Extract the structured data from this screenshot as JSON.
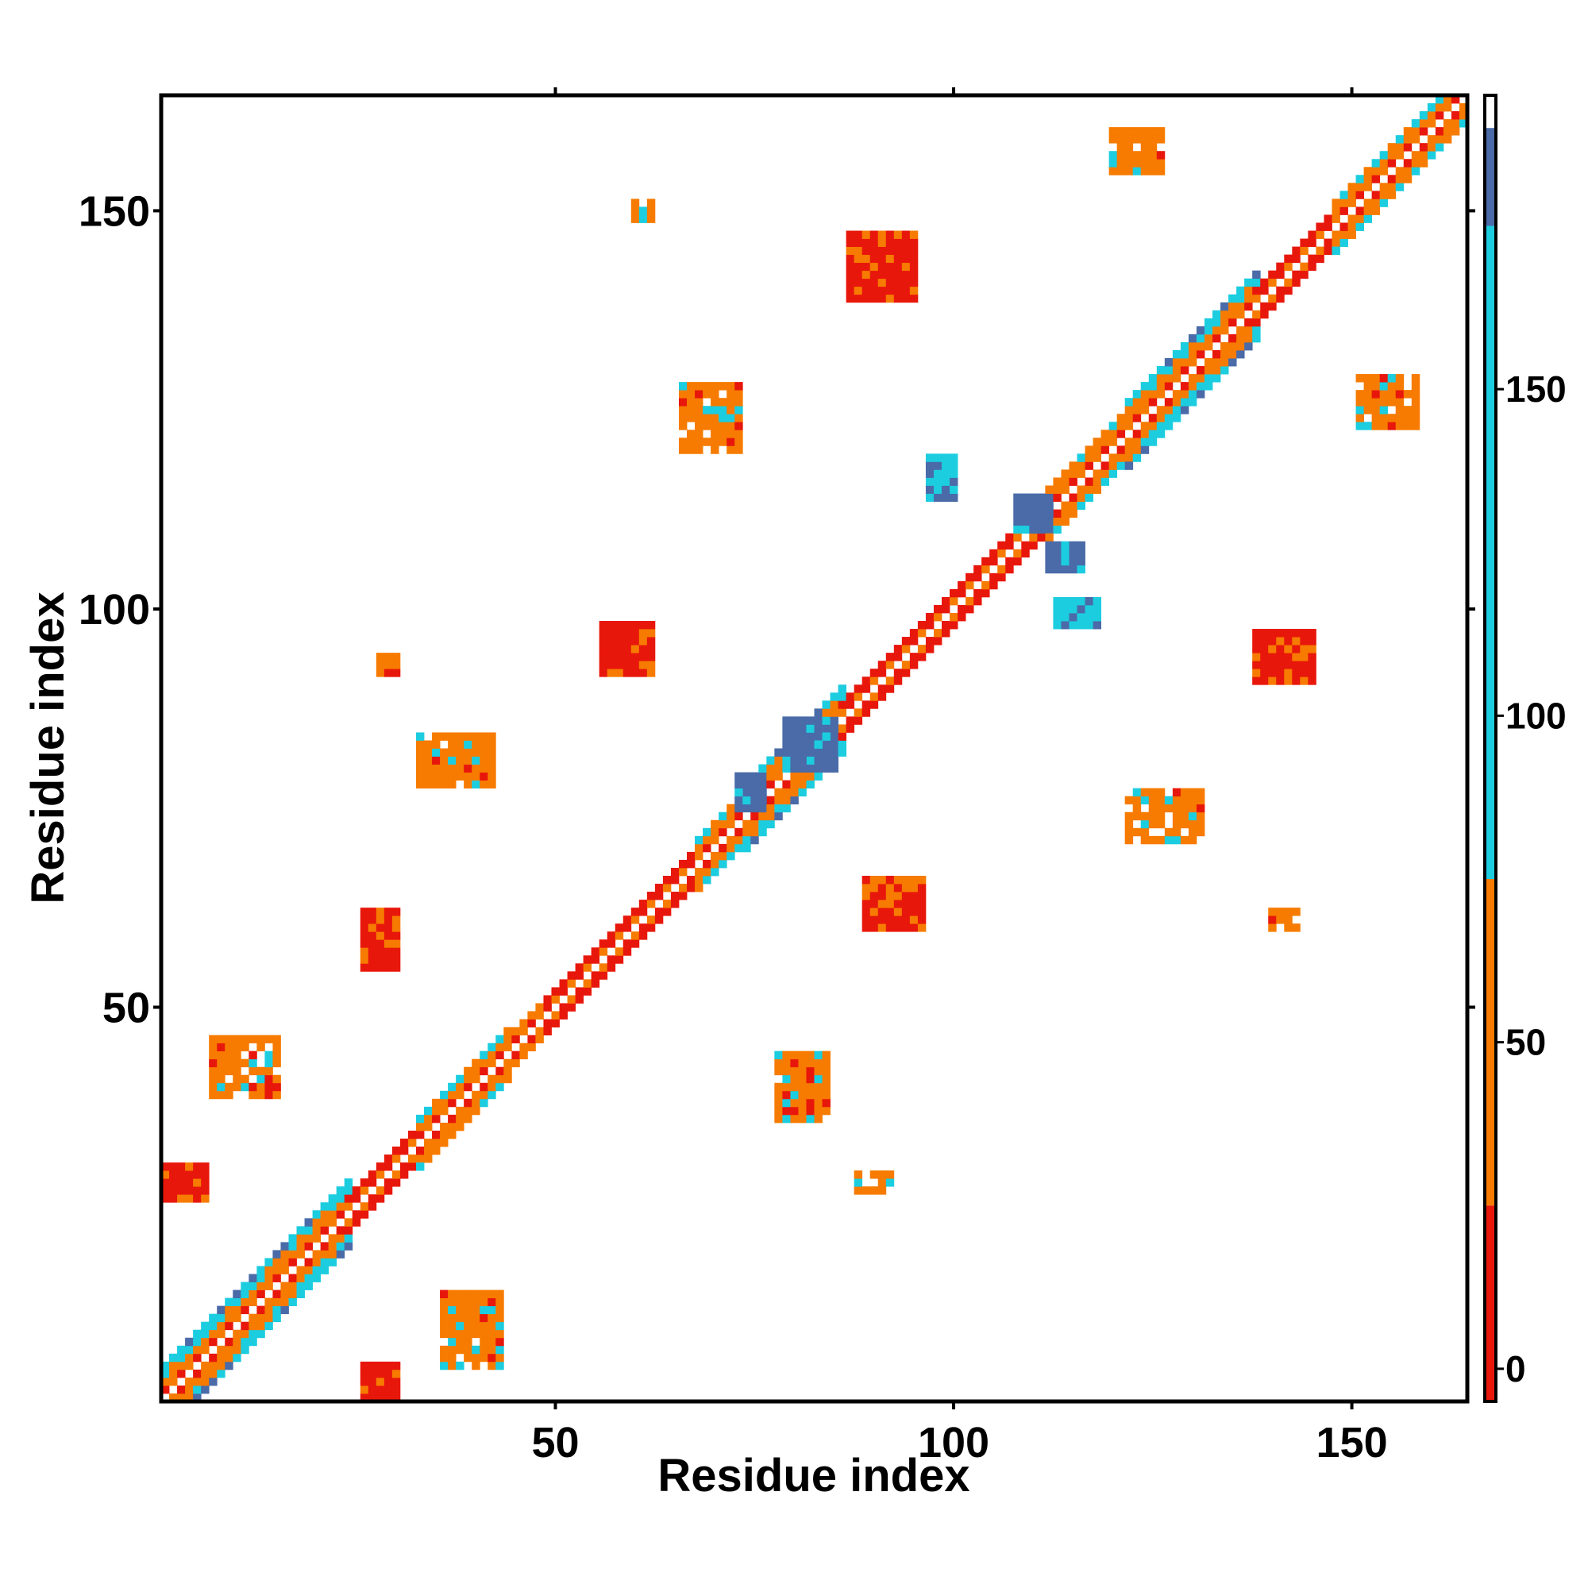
{
  "chart_data": {
    "type": "heatmap",
    "title": "",
    "xlabel": "Residue index",
    "ylabel": "Residue index",
    "xlim": [
      1,
      164
    ],
    "ylim": [
      1,
      164
    ],
    "x_ticks": [
      50,
      100,
      150
    ],
    "y_ticks": [
      50,
      100,
      150
    ],
    "grid": false,
    "colorbar": {
      "ticks": [
        0,
        50,
        100,
        150
      ],
      "range": [
        -5,
        195
      ],
      "bands": [
        {
          "from": -5,
          "to": 25,
          "color": "#e8170b"
        },
        {
          "from": 25,
          "to": 75,
          "color": "#f77b00"
        },
        {
          "from": 75,
          "to": 175,
          "color": "#1ccde0"
        },
        {
          "from": 175,
          "to": 190,
          "color": "#4a6ba8"
        },
        {
          "from": 190,
          "to": 195,
          "color": "#ffffff"
        }
      ]
    },
    "diagonal_segments": [
      {
        "start": 1,
        "end": 16,
        "width": 4,
        "type": "helix"
      },
      {
        "start": 16,
        "end": 24,
        "width": 4,
        "type": "helix"
      },
      {
        "start": 24,
        "end": 33,
        "width": 2,
        "type": "loop"
      },
      {
        "start": 33,
        "end": 44,
        "width": 3,
        "type": "helix"
      },
      {
        "start": 44,
        "end": 49,
        "width": 2,
        "type": "helix"
      },
      {
        "start": 49,
        "end": 58,
        "width": 2,
        "type": "loop"
      },
      {
        "start": 58,
        "end": 68,
        "width": 2,
        "type": "strand"
      },
      {
        "start": 68,
        "end": 74,
        "width": 3,
        "type": "helix"
      },
      {
        "start": 74,
        "end": 86,
        "width": 4,
        "type": "helix"
      },
      {
        "start": 86,
        "end": 112,
        "width": 2,
        "type": "loop"
      },
      {
        "start": 112,
        "end": 122,
        "width": 3,
        "type": "helix"
      },
      {
        "start": 122,
        "end": 138,
        "width": 4,
        "type": "helix"
      },
      {
        "start": 138,
        "end": 148,
        "width": 2,
        "type": "loop"
      },
      {
        "start": 148,
        "end": 164,
        "width": 3,
        "type": "helix"
      }
    ],
    "off_diagonal_patches": [
      {
        "i": [
          26,
          30
        ],
        "j": [
          55,
          62
        ],
        "value": 5
      },
      {
        "i": [
          89,
          96
        ],
        "j": [
          60,
          66
        ],
        "value": 5
      },
      {
        "i": [
          56,
          62
        ],
        "j": [
          92,
          98
        ],
        "value": 5
      },
      {
        "i": [
          138,
          145
        ],
        "j": [
          91,
          97
        ],
        "value": 5
      },
      {
        "i": [
          87,
          95
        ],
        "j": [
          139,
          147
        ],
        "value": 5
      },
      {
        "i": [
          26,
          30
        ],
        "j": [
          1,
          5
        ],
        "value": 20
      },
      {
        "i": [
          1,
          6
        ],
        "j": [
          26,
          30
        ],
        "value": 20
      },
      {
        "i": [
          33,
          42
        ],
        "j": [
          78,
          84
        ],
        "value": 45
      },
      {
        "i": [
          78,
          84
        ],
        "j": [
          36,
          44
        ],
        "value": 45
      },
      {
        "i": [
          66,
          73
        ],
        "j": [
          120,
          128
        ],
        "value": 45
      },
      {
        "i": [
          122,
          131
        ],
        "j": [
          71,
          77
        ],
        "value": 45
      },
      {
        "i": [
          120,
          126
        ],
        "j": [
          155,
          160
        ],
        "value": 45
      },
      {
        "i": [
          151,
          158
        ],
        "j": [
          123,
          129
        ],
        "value": 45
      },
      {
        "i": [
          7,
          15
        ],
        "j": [
          39,
          46
        ],
        "value": 45
      },
      {
        "i": [
          36,
          43
        ],
        "j": [
          5,
          14
        ],
        "value": 45
      },
      {
        "i": [
          28,
          30
        ],
        "j": [
          92,
          94
        ],
        "value": 45
      },
      {
        "i": [
          60,
          62
        ],
        "j": [
          149,
          151
        ],
        "value": 45
      },
      {
        "i": [
          140,
          143
        ],
        "j": [
          60,
          62
        ],
        "value": 45
      },
      {
        "i": [
          88,
          92
        ],
        "j": [
          27,
          29
        ],
        "value": 45
      },
      {
        "i": [
          113,
          118
        ],
        "j": [
          98,
          101
        ],
        "value": 110
      },
      {
        "i": [
          97,
          100
        ],
        "j": [
          114,
          119
        ],
        "value": 110
      },
      {
        "i": [
          73,
          76
        ],
        "j": [
          75,
          79
        ],
        "value": 180
      },
      {
        "i": [
          79,
          85
        ],
        "j": [
          80,
          86
        ],
        "value": 180
      },
      {
        "i": [
          108,
          112
        ],
        "j": [
          110,
          114
        ],
        "value": 180
      },
      {
        "i": [
          112,
          116
        ],
        "j": [
          105,
          108
        ],
        "value": 180
      }
    ]
  }
}
